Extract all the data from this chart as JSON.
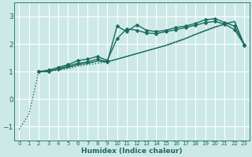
{
  "xlabel": "Humidex (Indice chaleur)",
  "ylabel": "",
  "bg_color": "#cce9e7",
  "grid_color": "#ffffff",
  "line_color": "#1a6b5e",
  "xlim": [
    -0.5,
    23.5
  ],
  "ylim": [
    -1.5,
    3.5
  ],
  "yticks": [
    -1,
    0,
    1,
    2,
    3
  ],
  "xticks": [
    0,
    1,
    2,
    3,
    4,
    5,
    6,
    7,
    8,
    9,
    10,
    11,
    12,
    13,
    14,
    15,
    16,
    17,
    18,
    19,
    20,
    21,
    22,
    23
  ],
  "series": [
    {
      "x": [
        0,
        1,
        2,
        3,
        4,
        5,
        6,
        7,
        8,
        9,
        10,
        11,
        12,
        13,
        14,
        15,
        16,
        17,
        18,
        19,
        20,
        21,
        22,
        23
      ],
      "y": [
        -1.1,
        -0.55,
        1.0,
        1.0,
        1.05,
        1.1,
        1.2,
        1.25,
        1.3,
        1.35,
        1.45,
        1.55,
        1.65,
        1.75,
        1.85,
        1.95,
        2.05,
        2.2,
        2.35,
        2.5,
        2.6,
        2.75,
        2.82,
        1.95
      ],
      "style": "dotted",
      "marker": false,
      "lw": 1.0
    },
    {
      "x": [
        2,
        3,
        4,
        5,
        6,
        7,
        8,
        9,
        10,
        11,
        12,
        13,
        14,
        15,
        16,
        17,
        18,
        19,
        20,
        21,
        22,
        23
      ],
      "y": [
        1.0,
        1.0,
        1.1,
        1.2,
        1.3,
        1.35,
        1.45,
        1.35,
        2.65,
        2.45,
        2.7,
        2.5,
        2.45,
        2.5,
        2.6,
        2.65,
        2.75,
        2.88,
        2.92,
        2.78,
        2.65,
        1.95
      ],
      "style": "solid",
      "marker": true,
      "lw": 1.0
    },
    {
      "x": [
        2,
        3,
        4,
        5,
        6,
        7,
        8,
        9,
        10,
        11,
        12,
        13,
        14,
        15,
        16,
        17,
        18,
        19,
        20,
        21,
        22,
        23
      ],
      "y": [
        1.0,
        1.05,
        1.15,
        1.25,
        1.4,
        1.45,
        1.55,
        1.4,
        2.2,
        2.55,
        2.5,
        2.4,
        2.38,
        2.45,
        2.52,
        2.6,
        2.68,
        2.78,
        2.82,
        2.72,
        2.52,
        1.97
      ],
      "style": "solid",
      "marker": true,
      "lw": 1.0
    },
    {
      "x": [
        2,
        3,
        4,
        5,
        6,
        7,
        8,
        9,
        10,
        11,
        12,
        13,
        14,
        15,
        16,
        17,
        18,
        19,
        20,
        21,
        22,
        23
      ],
      "y": [
        1.0,
        1.02,
        1.08,
        1.15,
        1.25,
        1.3,
        1.38,
        1.35,
        1.45,
        1.55,
        1.65,
        1.75,
        1.85,
        1.95,
        2.08,
        2.2,
        2.35,
        2.48,
        2.62,
        2.72,
        2.82,
        1.97
      ],
      "style": "solid",
      "marker": false,
      "lw": 1.0
    }
  ]
}
